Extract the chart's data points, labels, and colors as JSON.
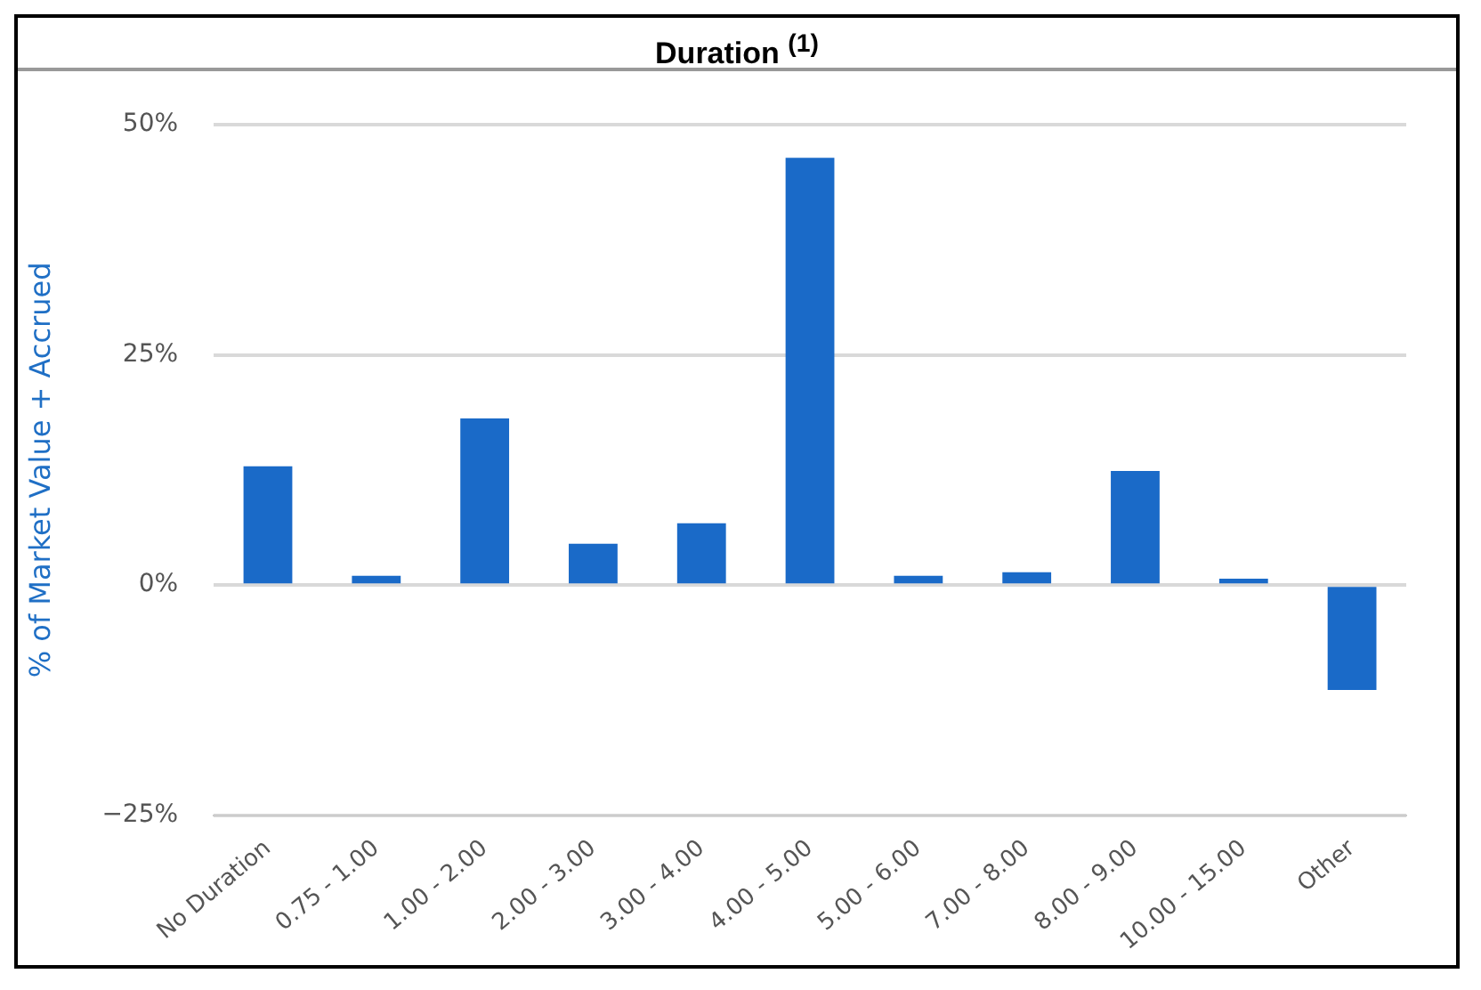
{
  "chart_data": {
    "type": "bar",
    "title": "Duration $^{(1)}$",
    "ylabel": "% of Market Value + Accrued",
    "categories": [
      "No Duration",
      "0.75 - 1.00",
      "1.00 - 2.00",
      "2.00 - 3.00",
      "3.00 - 4.00",
      "4.00 - 5.00",
      "5.00 - 6.00",
      "7.00 - 8.00",
      "8.00 - 9.00",
      "10.00 - 15.00",
      "Other"
    ],
    "values": [
      12.9,
      1,
      18.1,
      4.5,
      6.7,
      46.4,
      1,
      1.4,
      12.4,
      0.7,
      -11.4
    ],
    "color": "#1a6ac8",
    "ylim": [
      -25,
      50
    ],
    "yticks": [
      {
        "value": -25,
        "label": "−25%"
      },
      {
        "value": 0,
        "label": "0%"
      },
      {
        "value": 25,
        "label": "25%"
      },
      {
        "value": 50,
        "label": "50%"
      }
    ],
    "grid": "y",
    "legend": false
  }
}
